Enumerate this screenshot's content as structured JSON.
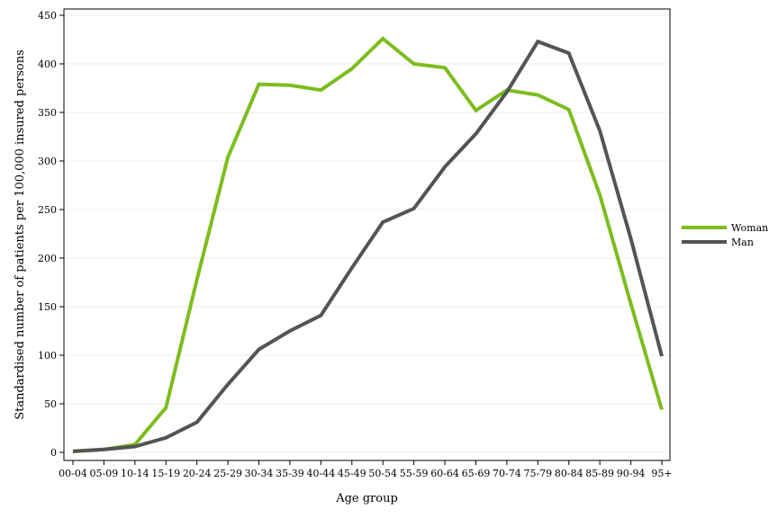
{
  "chart_data": {
    "type": "line",
    "xlabel": "Age group",
    "ylabel": "Standardised number of patients per 100,000 insured persons",
    "ylim": [
      0,
      450
    ],
    "yticks": [
      0,
      50,
      100,
      150,
      200,
      250,
      300,
      350,
      400,
      450
    ],
    "grid": "horizontal",
    "legend_position": "right",
    "categories": [
      "00-04",
      "05-09",
      "10-14",
      "15-19",
      "20-24",
      "25-29",
      "30-34",
      "35-39",
      "40-44",
      "45-49",
      "50-54",
      "55-59",
      "60-64",
      "65-69",
      "70-74",
      "75-79",
      "80-84",
      "85-89",
      "90-94",
      "95+"
    ],
    "series": [
      {
        "name": "Woman",
        "color": "#7dbd1f",
        "values": [
          1,
          3,
          8,
          46,
          178,
          304,
          379,
          378,
          373,
          395,
          426,
          400,
          396,
          352,
          373,
          368,
          353,
          265,
          153,
          44
        ]
      },
      {
        "name": "Man",
        "color": "#545454",
        "values": [
          1,
          3,
          6,
          15,
          31,
          70,
          106,
          125,
          141,
          190,
          237,
          251,
          294,
          328,
          371,
          423,
          411,
          331,
          220,
          99
        ]
      }
    ]
  }
}
